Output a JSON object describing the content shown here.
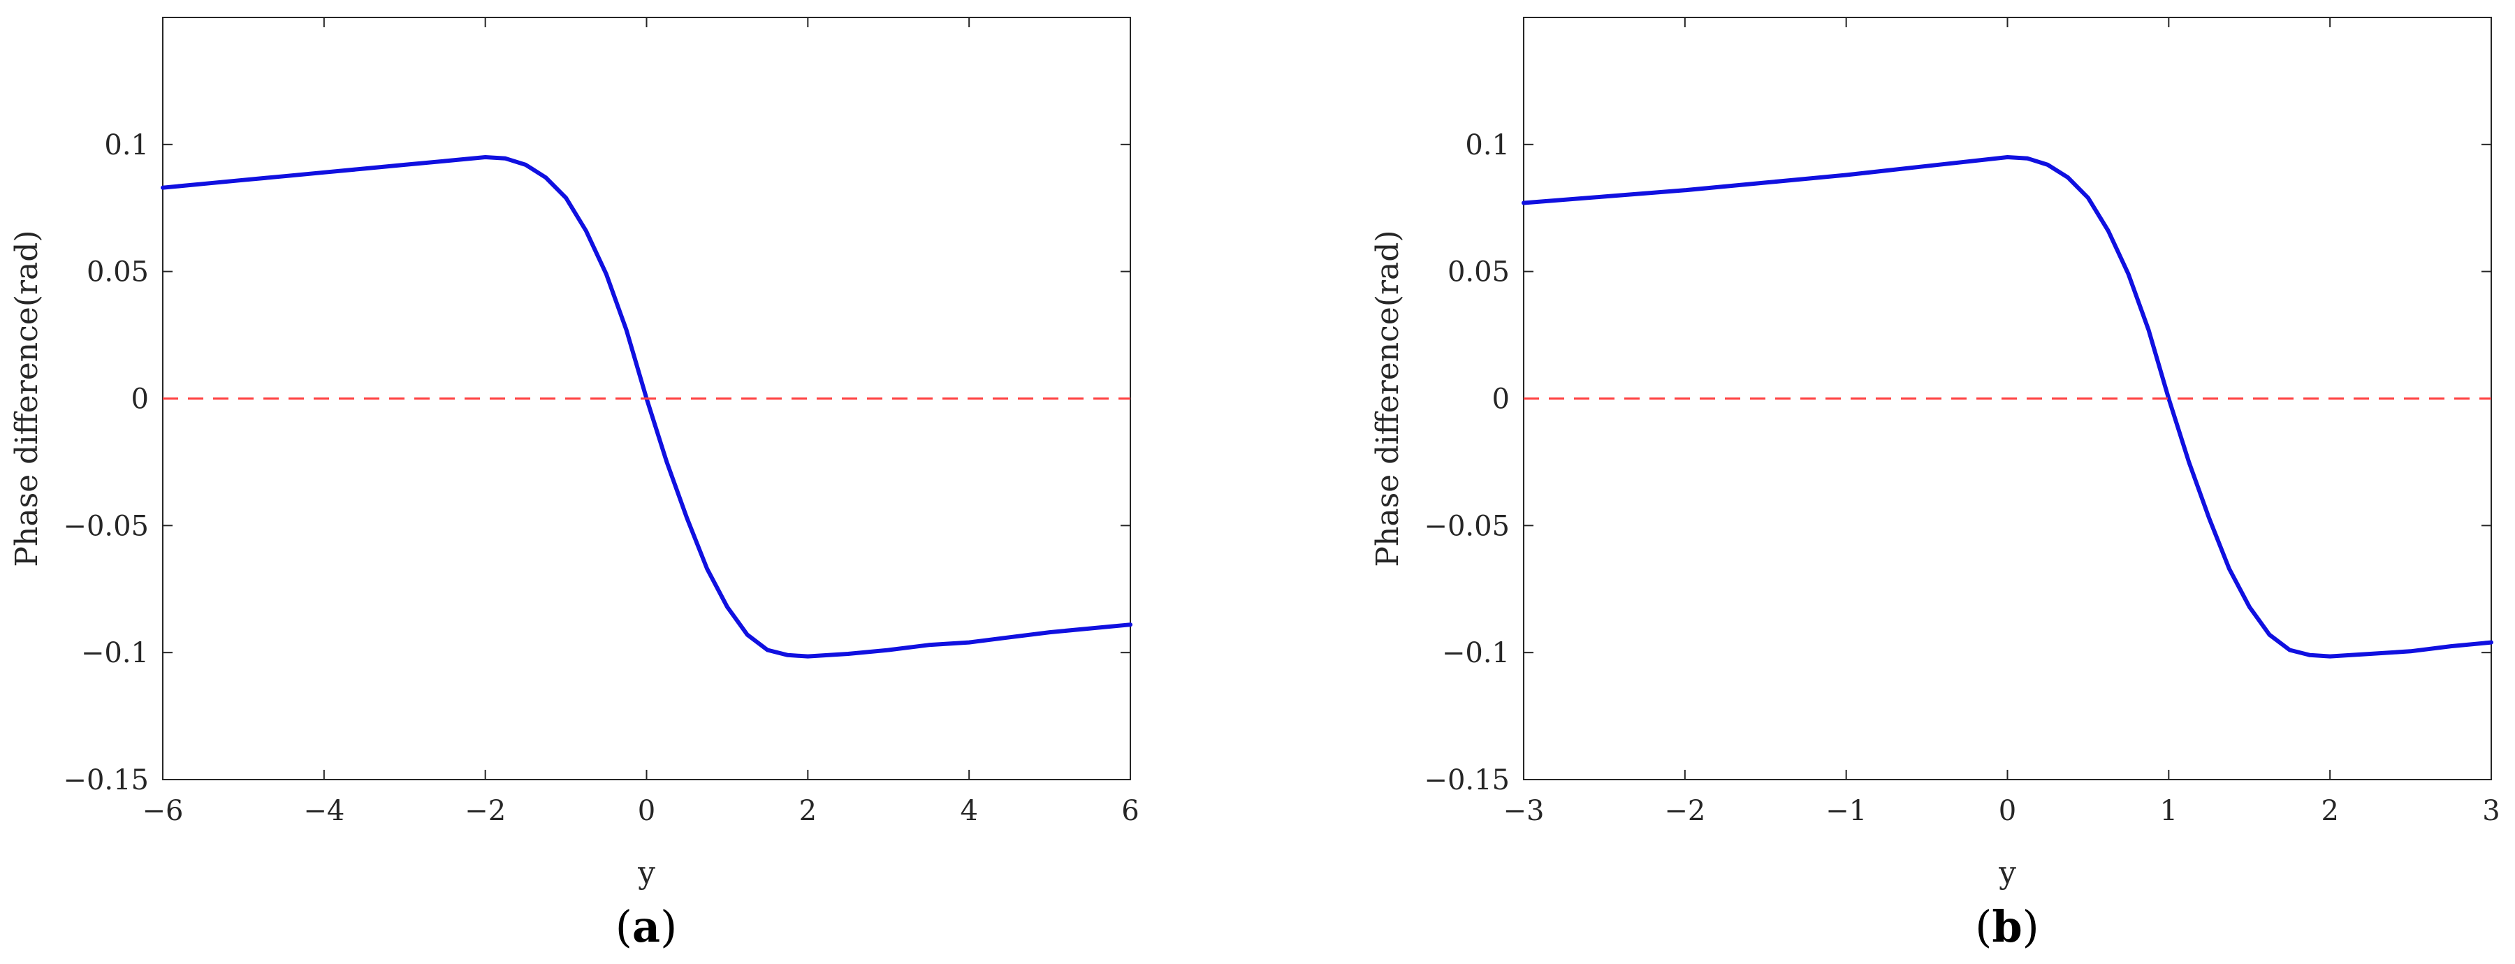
{
  "chart_data": [
    {
      "type": "line",
      "panel_label": "a",
      "xlabel": "y",
      "ylabel": "Phase difference(rad)",
      "xlim": [
        -6,
        6
      ],
      "ylim": [
        -0.15,
        0.15
      ],
      "xticks": [
        -6,
        -4,
        -2,
        0,
        2,
        4,
        6
      ],
      "xtick_labels": [
        "−6",
        "−4",
        "−2",
        "0",
        "2",
        "4",
        "6"
      ],
      "yticks": [
        -0.15,
        -0.1,
        -0.05,
        0,
        0.05,
        0.1
      ],
      "ytick_labels": [
        "−0.15",
        "−0.1",
        "−0.05",
        "0",
        "0.05",
        "0.1"
      ],
      "grid": false,
      "series": [
        {
          "style": "solid",
          "color": "#1010e0",
          "x": [
            -6,
            -5.5,
            -5,
            -4.5,
            -4,
            -3.5,
            -3,
            -2.5,
            -2,
            -1.75,
            -1.5,
            -1.25,
            -1,
            -0.75,
            -0.5,
            -0.25,
            0,
            0.25,
            0.5,
            0.75,
            1,
            1.25,
            1.5,
            1.75,
            2,
            2.5,
            3,
            3.5,
            4,
            4.5,
            5,
            5.5,
            6
          ],
          "y": [
            0.083,
            0.0845,
            0.086,
            0.0875,
            0.089,
            0.0905,
            0.092,
            0.0935,
            0.095,
            0.0945,
            0.092,
            0.087,
            0.079,
            0.066,
            0.049,
            0.027,
            0.0,
            -0.025,
            -0.047,
            -0.067,
            -0.082,
            -0.093,
            -0.099,
            -0.101,
            -0.1015,
            -0.1005,
            -0.099,
            -0.097,
            -0.096,
            -0.094,
            -0.092,
            -0.0905,
            -0.089
          ]
        },
        {
          "style": "dashed",
          "color": "#ff4040",
          "x": [
            -6,
            6
          ],
          "y": [
            0,
            0
          ]
        }
      ]
    },
    {
      "type": "line",
      "panel_label": "b",
      "xlabel": "y",
      "ylabel": "Phase difference(rad)",
      "xlim": [
        -3,
        3
      ],
      "ylim": [
        -0.15,
        0.15
      ],
      "xticks": [
        -3,
        -2,
        -1,
        0,
        1,
        2,
        3
      ],
      "xtick_labels": [
        "−3",
        "−2",
        "−1",
        "0",
        "1",
        "2",
        "3"
      ],
      "yticks": [
        -0.15,
        -0.1,
        -0.05,
        0,
        0.05,
        0.1
      ],
      "ytick_labels": [
        "−0.15",
        "−0.1",
        "−0.05",
        "0",
        "0.05",
        "0.1"
      ],
      "grid": false,
      "series": [
        {
          "style": "solid",
          "color": "#1010e0",
          "x": [
            -3,
            -2.5,
            -2,
            -1.5,
            -1,
            -0.5,
            0,
            0.125,
            0.25,
            0.375,
            0.5,
            0.625,
            0.75,
            0.875,
            1,
            1.125,
            1.25,
            1.375,
            1.5,
            1.625,
            1.75,
            1.875,
            2,
            2.25,
            2.5,
            2.75,
            3
          ],
          "y": [
            0.077,
            0.0795,
            0.082,
            0.085,
            0.088,
            0.0915,
            0.095,
            0.0945,
            0.092,
            0.087,
            0.079,
            0.066,
            0.049,
            0.027,
            0.0,
            -0.025,
            -0.047,
            -0.067,
            -0.082,
            -0.093,
            -0.099,
            -0.101,
            -0.1015,
            -0.1005,
            -0.0995,
            -0.0975,
            -0.096
          ]
        },
        {
          "style": "dashed",
          "color": "#ff4040",
          "x": [
            -3,
            3
          ],
          "y": [
            0,
            0
          ]
        }
      ]
    }
  ]
}
